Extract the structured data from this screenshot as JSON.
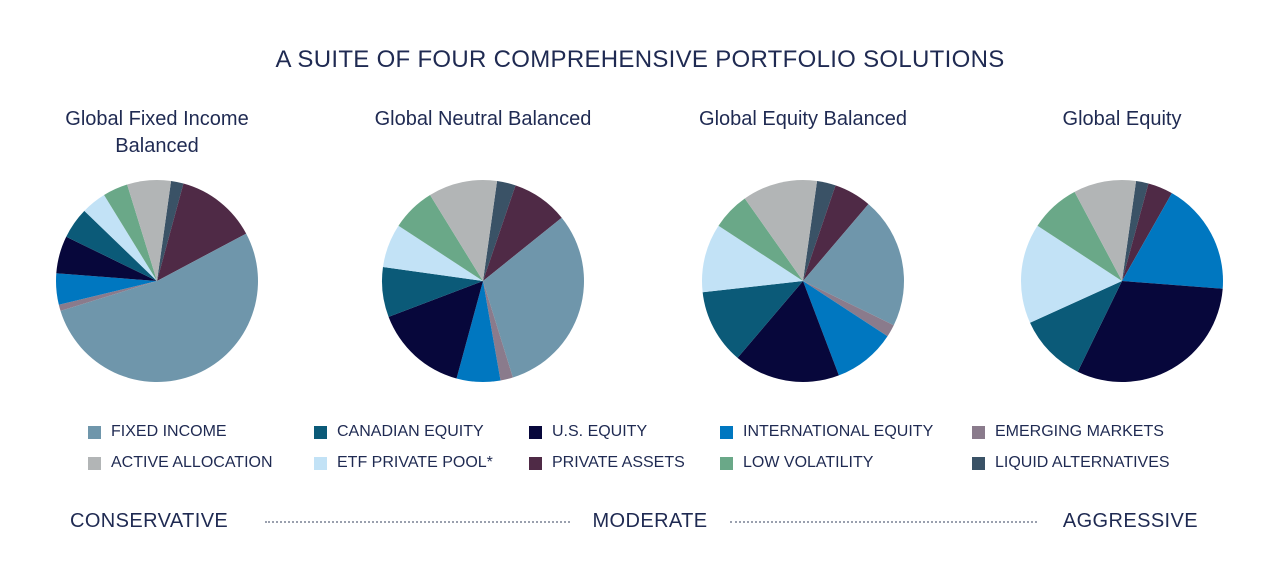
{
  "title": "A SUITE OF FOUR COMPREHENSIVE PORTFOLIO SOLUTIONS",
  "legend": {
    "categories": [
      "FIXED INCOME",
      "CANADIAN EQUITY",
      "U.S. EQUITY",
      "INTERNATIONAL EQUITY",
      "EMERGING MARKETS",
      "ACTIVE ALLOCATION",
      "ETF PRIVATE POOL*",
      "PRIVATE ASSETS",
      "LOW VOLATILITY",
      "LIQUID ALTERNATIVES"
    ],
    "colors": [
      "#6f96ab",
      "#0b5a78",
      "#07073b",
      "#0077c0",
      "#8a7b8c",
      "#b2b5b6",
      "#c2e2f6",
      "#4f2a46",
      "#6aa888",
      "#3a5266"
    ]
  },
  "chart_data": [
    {
      "type": "pie",
      "title": "Global Fixed Income Balanced",
      "values": [
        53,
        5,
        6,
        5,
        1,
        7,
        4,
        13,
        4,
        2
      ]
    },
    {
      "type": "pie",
      "title": "Global Neutral Balanced",
      "values": [
        31,
        8,
        15,
        7,
        2,
        11,
        7,
        9,
        7,
        3
      ]
    },
    {
      "type": "pie",
      "title": "Global Equity Balanced",
      "values": [
        21,
        12,
        17,
        10,
        2,
        12,
        11,
        6,
        6,
        3
      ]
    },
    {
      "type": "pie",
      "title": "Global Equity",
      "values": [
        0,
        11,
        31,
        18,
        0,
        10,
        16,
        4,
        8,
        2
      ]
    }
  ],
  "scale": [
    "CONSERVATIVE",
    "MODERATE",
    "AGGRESSIVE"
  ]
}
